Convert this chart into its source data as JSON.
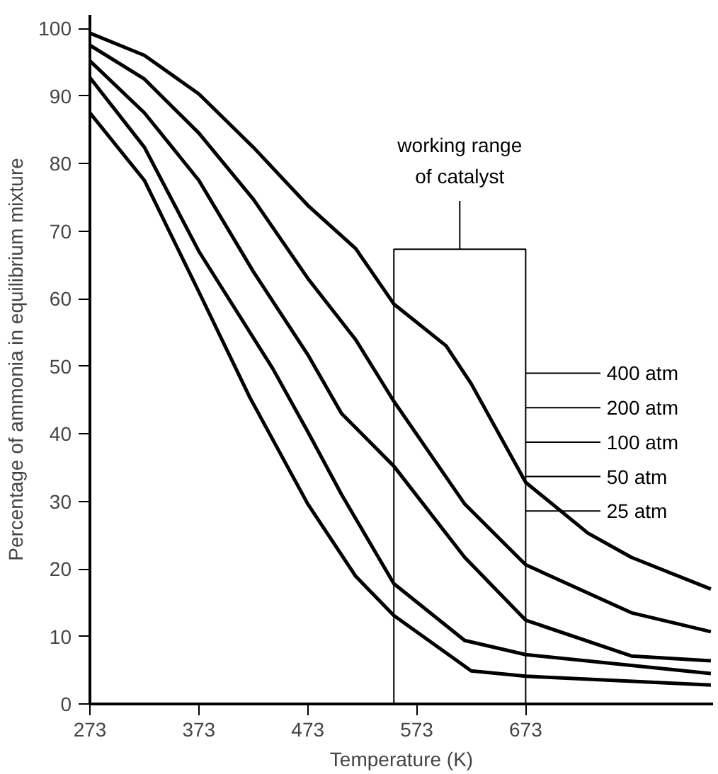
{
  "chart_data": {
    "type": "line",
    "xlabel": "Temperature (K)",
    "ylabel": "Percentage of ammonia in equilibrium mixture",
    "xlim": [
      273,
      845
    ],
    "ylim": [
      0,
      102
    ],
    "xticks": [
      273,
      373,
      473,
      573,
      673
    ],
    "yticks": [
      0,
      10,
      20,
      30,
      40,
      50,
      60,
      70,
      80,
      90,
      100
    ],
    "grid": false,
    "legend": "right",
    "bands": [
      {
        "axis": "x",
        "from": 552,
        "to": 673,
        "label": "working range\nof catalyst",
        "color": "#ffffff"
      }
    ],
    "series": [
      {
        "name": "400 atm",
        "color": "#000000",
        "x": [
          273,
          323,
          373,
          423,
          473,
          517,
          552,
          600,
          623,
          673,
          730,
          770,
          843
        ],
        "values": [
          99.3,
          96,
          90.3,
          82.4,
          73.8,
          67.4,
          59.2,
          53,
          47.4,
          32.8,
          25.3,
          21.7,
          17
        ]
      },
      {
        "name": "200 atm",
        "color": "#000000",
        "x": [
          273,
          323,
          373,
          423,
          473,
          517,
          552,
          617,
          673,
          770,
          843
        ],
        "values": [
          97.5,
          92.5,
          84.5,
          74.7,
          63,
          53.9,
          44.8,
          29.6,
          20.6,
          13.5,
          10.7
        ]
      },
      {
        "name": "100 atm",
        "color": "#000000",
        "x": [
          273,
          323,
          373,
          423,
          473,
          504,
          552,
          617,
          673,
          770,
          843
        ],
        "values": [
          95.2,
          87.5,
          77.5,
          64,
          51.7,
          43,
          35.2,
          21.7,
          12.4,
          7.1,
          6.4
        ]
      },
      {
        "name": "50 atm",
        "color": "#000000",
        "x": [
          273,
          323,
          373,
          441,
          473,
          504,
          552,
          617,
          673,
          843
        ],
        "values": [
          92.7,
          82.4,
          67,
          49.6,
          40.3,
          31,
          17.8,
          9.4,
          7.3,
          4.5
        ]
      },
      {
        "name": "25 atm",
        "color": "#000000",
        "x": [
          273,
          323,
          373,
          420,
          473,
          517,
          552,
          623,
          673,
          843
        ],
        "values": [
          87.5,
          77.5,
          61,
          45.3,
          29.6,
          18.9,
          13.1,
          4.9,
          4.1,
          2.8
        ]
      }
    ]
  }
}
